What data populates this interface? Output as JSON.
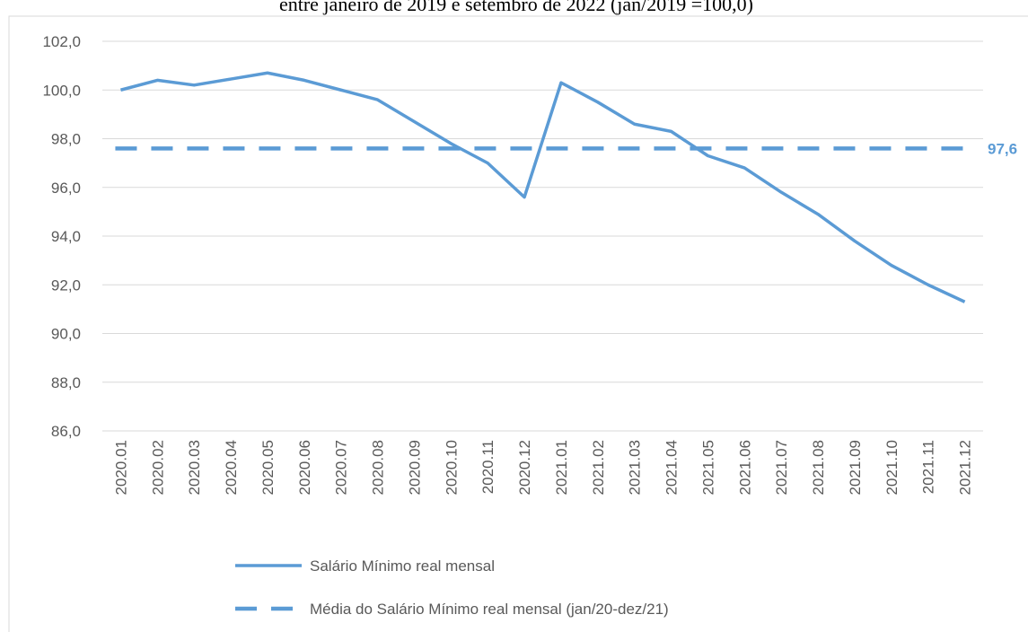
{
  "chart_data": {
    "type": "line",
    "title": "entre janeiro de 2019 e setembro de 2022 (jan/2019 =100,0)",
    "categories": [
      "2020.01",
      "2020.02",
      "2020.03",
      "2020.04",
      "2020.05",
      "2020.06",
      "2020.07",
      "2020.08",
      "2020.09",
      "2020.10",
      "2020.11",
      "2020.12",
      "2021.01",
      "2021.02",
      "2021.03",
      "2021.04",
      "2021.05",
      "2021.06",
      "2021.07",
      "2021.08",
      "2021.09",
      "2021.10",
      "2021.11",
      "2021.12"
    ],
    "series": [
      {
        "name": "Salário Mínimo real mensal",
        "color": "#5b9bd5",
        "values": [
          100.0,
          100.4,
          100.2,
          100.45,
          100.7,
          100.4,
          100.0,
          99.6,
          98.7,
          97.8,
          97.0,
          95.6,
          100.3,
          99.5,
          98.6,
          98.3,
          97.3,
          96.8,
          95.8,
          94.9,
          93.8,
          92.8,
          92.0,
          91.3
        ]
      }
    ],
    "reference_line": {
      "name": "Média do Salário Mínimo real mensal (jan/20-dez/21)",
      "color": "#5b9bd5",
      "value": 97.6,
      "value_label": "97,6"
    },
    "ylim": [
      86,
      102
    ],
    "yticks": [
      {
        "value": 86,
        "label": "86,0"
      },
      {
        "value": 88,
        "label": "88,0"
      },
      {
        "value": 90,
        "label": "90,0"
      },
      {
        "value": 92,
        "label": "92,0"
      },
      {
        "value": 94,
        "label": "94,0"
      },
      {
        "value": 96,
        "label": "96,0"
      },
      {
        "value": 98,
        "label": "98,0"
      },
      {
        "value": 100,
        "label": "100,0"
      },
      {
        "value": 102,
        "label": "102,0"
      }
    ],
    "grid": true
  }
}
